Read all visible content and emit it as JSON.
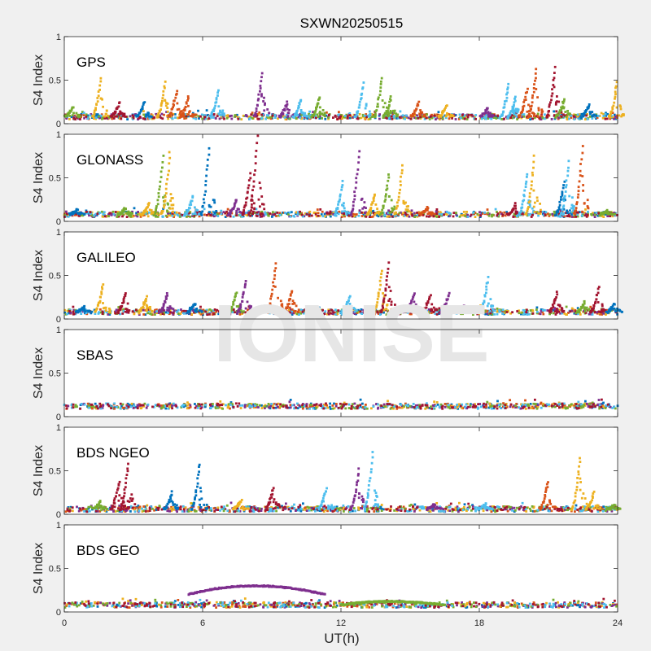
{
  "title": "SXWN20250515",
  "watermark": "IONISE",
  "colors": {
    "background": "#f0f0f0",
    "axes_bg": "#ffffff",
    "axes_line": "#262626",
    "watermark": "#e6e6e6",
    "series": [
      "#0072bd",
      "#d95319",
      "#edb120",
      "#7e2f8e",
      "#77ac30",
      "#4dbeee",
      "#a2142f"
    ]
  },
  "chart_data": {
    "type": "scatter",
    "shared_x": {
      "label": "UT(h)",
      "range": [
        0,
        24
      ],
      "ticks": [
        0,
        6,
        12,
        18,
        24
      ],
      "tick_labels": [
        "0",
        "6",
        "12",
        "18",
        "24"
      ]
    },
    "ylabel": "S4 Index",
    "ylim": [
      0,
      1
    ],
    "yticks": [
      0,
      0.5,
      1
    ],
    "ytick_labels": [
      "0",
      "0.5",
      "1"
    ],
    "grid": false,
    "panels": [
      {
        "label": "GPS",
        "baseline": 0.08,
        "spikes": [
          {
            "x": 0.3,
            "peak": 0.2,
            "color": 4
          },
          {
            "x": 1.5,
            "peak": 0.52,
            "color": 2
          },
          {
            "x": 2.3,
            "peak": 0.24,
            "color": 6
          },
          {
            "x": 3.4,
            "peak": 0.24,
            "color": 0
          },
          {
            "x": 4.3,
            "peak": 0.47,
            "color": 2
          },
          {
            "x": 4.8,
            "peak": 0.38,
            "color": 1
          },
          {
            "x": 5.3,
            "peak": 0.3,
            "color": 1
          },
          {
            "x": 6.6,
            "peak": 0.39,
            "color": 5
          },
          {
            "x": 8.5,
            "peak": 0.57,
            "color": 3
          },
          {
            "x": 9.6,
            "peak": 0.25,
            "color": 3
          },
          {
            "x": 10.2,
            "peak": 0.28,
            "color": 5
          },
          {
            "x": 11.0,
            "peak": 0.3,
            "color": 4
          },
          {
            "x": 12.9,
            "peak": 0.46,
            "color": 5
          },
          {
            "x": 13.7,
            "peak": 0.52,
            "color": 4
          },
          {
            "x": 14.1,
            "peak": 0.3,
            "color": 4
          },
          {
            "x": 15.3,
            "peak": 0.24,
            "color": 1
          },
          {
            "x": 16.5,
            "peak": 0.2,
            "color": 2
          },
          {
            "x": 18.3,
            "peak": 0.18,
            "color": 3
          },
          {
            "x": 19.2,
            "peak": 0.46,
            "color": 5
          },
          {
            "x": 19.5,
            "peak": 0.3,
            "color": 5
          },
          {
            "x": 20.0,
            "peak": 0.4,
            "color": 1
          },
          {
            "x": 20.4,
            "peak": 0.64,
            "color": 1
          },
          {
            "x": 21.2,
            "peak": 0.64,
            "color": 6
          },
          {
            "x": 21.6,
            "peak": 0.28,
            "color": 4
          },
          {
            "x": 22.7,
            "peak": 0.22,
            "color": 0
          },
          {
            "x": 23.9,
            "peak": 0.47,
            "color": 2
          }
        ]
      },
      {
        "label": "GLONASS",
        "baseline": 0.08,
        "spikes": [
          {
            "x": 0.5,
            "peak": 0.14,
            "color": 0
          },
          {
            "x": 2.6,
            "peak": 0.16,
            "color": 4
          },
          {
            "x": 3.6,
            "peak": 0.2,
            "color": 2
          },
          {
            "x": 4.2,
            "peak": 0.75,
            "color": 4
          },
          {
            "x": 4.5,
            "peak": 0.78,
            "color": 2
          },
          {
            "x": 5.5,
            "peak": 0.28,
            "color": 5
          },
          {
            "x": 6.2,
            "peak": 0.85,
            "color": 0
          },
          {
            "x": 7.4,
            "peak": 0.25,
            "color": 3
          },
          {
            "x": 8.0,
            "peak": 0.55,
            "color": 6
          },
          {
            "x": 8.3,
            "peak": 0.97,
            "color": 6
          },
          {
            "x": 12.0,
            "peak": 0.45,
            "color": 5
          },
          {
            "x": 12.7,
            "peak": 0.8,
            "color": 3
          },
          {
            "x": 13.4,
            "peak": 0.32,
            "color": 2
          },
          {
            "x": 14.0,
            "peak": 0.55,
            "color": 4
          },
          {
            "x": 14.6,
            "peak": 0.65,
            "color": 2
          },
          {
            "x": 15.7,
            "peak": 0.16,
            "color": 1
          },
          {
            "x": 19.5,
            "peak": 0.2,
            "color": 6
          },
          {
            "x": 20.0,
            "peak": 0.55,
            "color": 5
          },
          {
            "x": 20.3,
            "peak": 0.75,
            "color": 2
          },
          {
            "x": 21.6,
            "peak": 0.45,
            "color": 0
          },
          {
            "x": 21.8,
            "peak": 0.68,
            "color": 5
          },
          {
            "x": 22.4,
            "peak": 0.85,
            "color": 1
          },
          {
            "x": 23.5,
            "peak": 0.12,
            "color": 4
          }
        ]
      },
      {
        "label": "GALILEO",
        "baseline": 0.08,
        "spikes": [
          {
            "x": 0.8,
            "peak": 0.14,
            "color": 0
          },
          {
            "x": 1.6,
            "peak": 0.4,
            "color": 2
          },
          {
            "x": 2.6,
            "peak": 0.3,
            "color": 6
          },
          {
            "x": 3.5,
            "peak": 0.25,
            "color": 2
          },
          {
            "x": 4.4,
            "peak": 0.3,
            "color": 3
          },
          {
            "x": 5.6,
            "peak": 0.18,
            "color": 0
          },
          {
            "x": 7.4,
            "peak": 0.3,
            "color": 4
          },
          {
            "x": 7.8,
            "peak": 0.45,
            "color": 3
          },
          {
            "x": 9.1,
            "peak": 0.65,
            "color": 1
          },
          {
            "x": 9.8,
            "peak": 0.33,
            "color": 1
          },
          {
            "x": 12.3,
            "peak": 0.25,
            "color": 5
          },
          {
            "x": 13.7,
            "peak": 0.55,
            "color": 2
          },
          {
            "x": 14.0,
            "peak": 0.64,
            "color": 6
          },
          {
            "x": 15.1,
            "peak": 0.3,
            "color": 3
          },
          {
            "x": 15.8,
            "peak": 0.28,
            "color": 6
          },
          {
            "x": 16.6,
            "peak": 0.3,
            "color": 3
          },
          {
            "x": 18.3,
            "peak": 0.47,
            "color": 5
          },
          {
            "x": 21.3,
            "peak": 0.3,
            "color": 6
          },
          {
            "x": 22.5,
            "peak": 0.2,
            "color": 4
          },
          {
            "x": 23.1,
            "peak": 0.36,
            "color": 6
          },
          {
            "x": 23.8,
            "peak": 0.18,
            "color": 0
          }
        ]
      },
      {
        "label": "SBAS",
        "baseline": 0.12,
        "spikes": []
      },
      {
        "label": "BDS NGEO",
        "baseline": 0.06,
        "spikes": [
          {
            "x": 1.5,
            "peak": 0.14,
            "color": 4
          },
          {
            "x": 2.3,
            "peak": 0.38,
            "color": 6
          },
          {
            "x": 2.7,
            "peak": 0.58,
            "color": 6
          },
          {
            "x": 4.6,
            "peak": 0.25,
            "color": 0
          },
          {
            "x": 5.8,
            "peak": 0.58,
            "color": 0
          },
          {
            "x": 7.6,
            "peak": 0.16,
            "color": 2
          },
          {
            "x": 9.0,
            "peak": 0.3,
            "color": 6
          },
          {
            "x": 11.3,
            "peak": 0.3,
            "color": 5
          },
          {
            "x": 12.7,
            "peak": 0.52,
            "color": 3
          },
          {
            "x": 13.3,
            "peak": 0.7,
            "color": 5
          },
          {
            "x": 16.0,
            "peak": 0.12,
            "color": 3
          },
          {
            "x": 18.2,
            "peak": 0.12,
            "color": 5
          },
          {
            "x": 20.9,
            "peak": 0.38,
            "color": 1
          },
          {
            "x": 22.3,
            "peak": 0.66,
            "color": 2
          },
          {
            "x": 22.9,
            "peak": 0.25,
            "color": 2
          },
          {
            "x": 23.8,
            "peak": 0.1,
            "color": 4
          }
        ]
      },
      {
        "label": "BDS GEO",
        "baseline": 0.08,
        "spikes": [],
        "arcs": [
          {
            "x_start": 5.4,
            "x_end": 11.3,
            "x_peak": 8.2,
            "peak": 0.3,
            "edge": 0.2,
            "color": 3
          },
          {
            "x_start": 12.0,
            "x_end": 16.5,
            "x_peak": 14.0,
            "peak": 0.12,
            "edge": 0.08,
            "color": 4
          }
        ]
      }
    ]
  }
}
